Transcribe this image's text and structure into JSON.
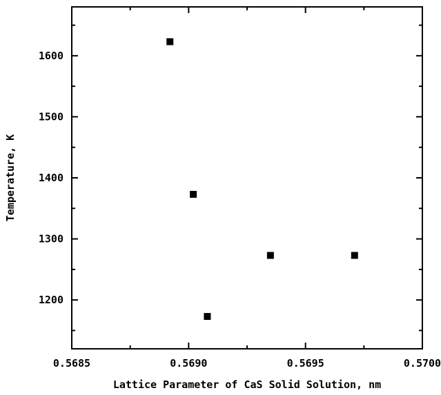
{
  "chart_data": {
    "type": "scatter",
    "xlabel": "Lattice Parameter of CaS Solid Solution, nm",
    "ylabel": "Temperature, K",
    "xlim": [
      0.5685,
      0.57
    ],
    "ylim": [
      1120,
      1680
    ],
    "xticks": [
      "0.5685",
      "0.5690",
      "0.5695",
      "0.5700"
    ],
    "yticks": [
      "1200",
      "1300",
      "1400",
      "1500",
      "1600"
    ],
    "grid": false,
    "marker": "square",
    "marker_color": "#000000",
    "points": [
      {
        "x": 0.56892,
        "y": 1623
      },
      {
        "x": 0.56902,
        "y": 1373
      },
      {
        "x": 0.56935,
        "y": 1273
      },
      {
        "x": 0.56971,
        "y": 1273
      },
      {
        "x": 0.56908,
        "y": 1173
      }
    ]
  }
}
